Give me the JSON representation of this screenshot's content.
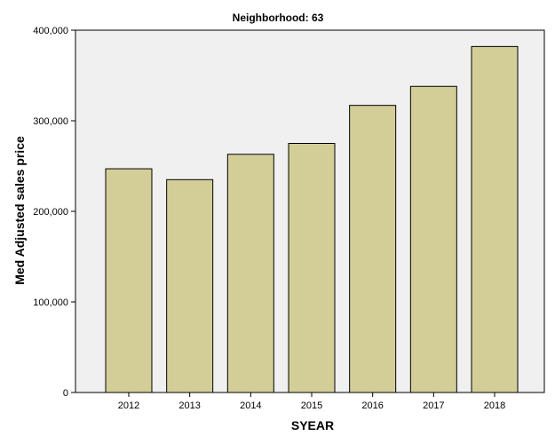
{
  "colors": {
    "plot_background": "#f0f0f0",
    "bar_fill": "#d3ce97",
    "bar_stroke": "#000000",
    "axis": "#000000"
  },
  "chart_data": {
    "type": "bar",
    "title": "Neighborhood: 63",
    "xlabel": "SYEAR",
    "ylabel": "Med Adjusted sales price",
    "categories": [
      "2012",
      "2013",
      "2014",
      "2015",
      "2016",
      "2017",
      "2018"
    ],
    "values": [
      247000,
      235000,
      263000,
      275000,
      317000,
      338000,
      382000
    ],
    "ylim": [
      0,
      400000
    ],
    "yticks": [
      0,
      100000,
      200000,
      300000,
      400000
    ],
    "ytick_labels": [
      "0",
      "100,000",
      "200,000",
      "300,000",
      "400,000"
    ],
    "grid": false,
    "legend": "none"
  }
}
